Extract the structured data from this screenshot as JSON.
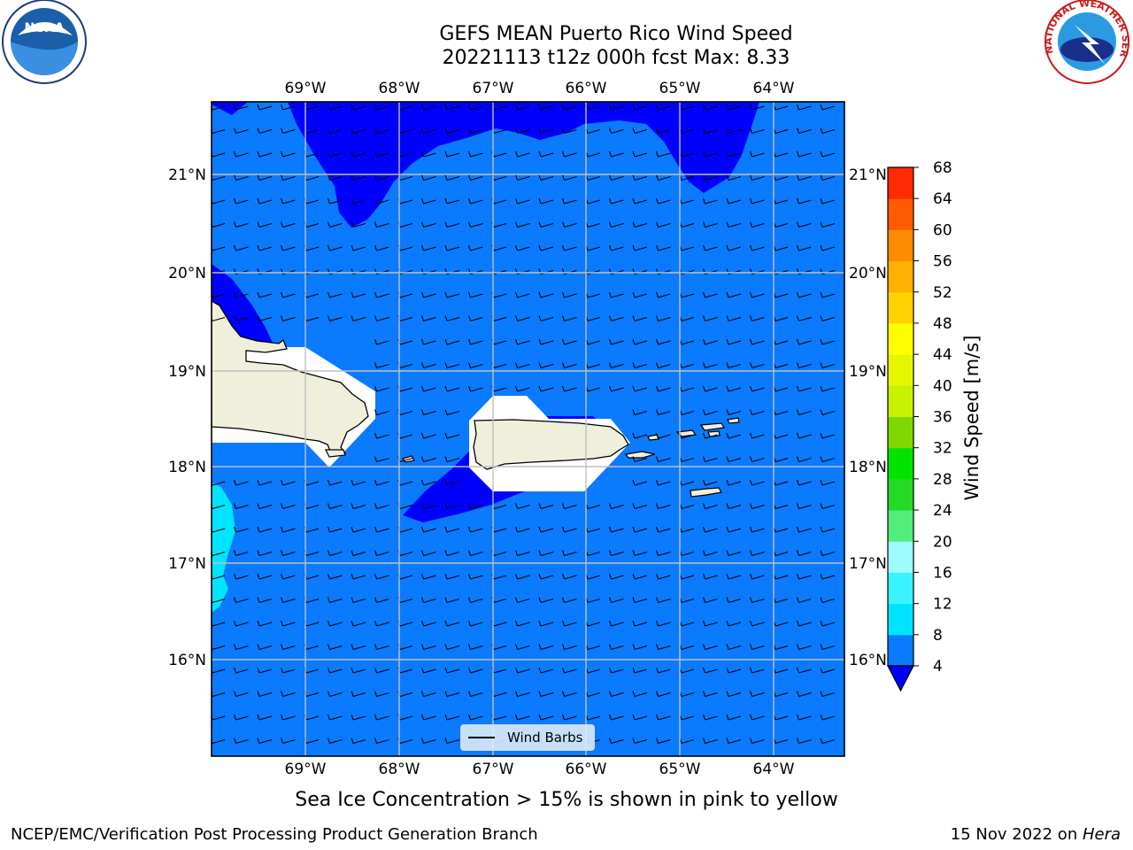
{
  "title_line1": "GEFS MEAN Puerto Rico Wind Speed",
  "title_line2": "20221113 t12z 000h fcst   Max: 8.33",
  "lon_labels": [
    "69°W",
    "68°W",
    "67°W",
    "66°W",
    "65°W",
    "64°W"
  ],
  "lat_labels": [
    "21°N",
    "20°N",
    "19°N",
    "18°N",
    "17°N",
    "16°N"
  ],
  "colorbar": {
    "label": "Wind Speed [m/s]",
    "ticks": [
      "4",
      "8",
      "12",
      "16",
      "20",
      "24",
      "28",
      "32",
      "36",
      "40",
      "44",
      "48",
      "52",
      "56",
      "60",
      "64",
      "68"
    ],
    "colors": [
      "#0a7aff",
      "#00e5ff",
      "#39f4ff",
      "#9efcff",
      "#52ed7a",
      "#27d927",
      "#00e400",
      "#7fd900",
      "#c8f200",
      "#e6f500",
      "#ffff00",
      "#ffd200",
      "#ffb000",
      "#ff8c00",
      "#ff5a00",
      "#ff2a00"
    ],
    "under_color": "#0000ff"
  },
  "legend": {
    "label": "Wind Barbs"
  },
  "caption": "Sea Ice Concentration > 15% is shown in pink to yellow",
  "footer": {
    "left": "NCEP/EMC/Verification Post Processing Product Generation Branch",
    "right_date": "15 Nov 2022 on ",
    "right_host": "Hera"
  },
  "logos": {
    "left": "NOAA",
    "right": "NATIONAL WEATHER SERVICE"
  },
  "map_colors": {
    "ocean": "#0a7aff",
    "low_wind": "#0000ff",
    "higher_wind": "#00e5ff",
    "land": "#efefdc",
    "mask": "#ffffff"
  },
  "max_wind": 8.33
}
